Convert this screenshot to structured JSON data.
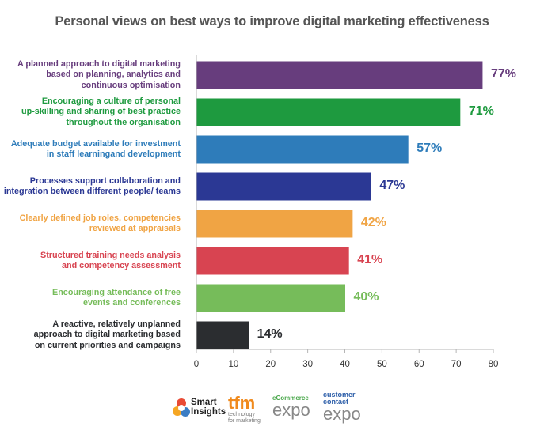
{
  "chart_data": {
    "type": "bar",
    "orientation": "horizontal",
    "title": "Personal views on best ways to improve digital marketing effectiveness",
    "categories": [
      [
        "A planned approach to digital marketing",
        "based on planning, analytics and",
        "continuous optimisation"
      ],
      [
        "Encouraging a culture of personal",
        "up-skilling and sharing of best practice",
        "throughout the organisation"
      ],
      [
        "Adequate budget available for investment",
        "in staff learningand development"
      ],
      [
        "Processes support collaboration and",
        "integration between different people/ teams"
      ],
      [
        "Clearly defined job roles, competencies",
        "reviewed at appraisals"
      ],
      [
        "Structured training needs analysis",
        "and competency assessment"
      ],
      [
        "Encouraging attendance of free",
        "events and conferences"
      ],
      [
        "A reactive, relatively unplanned",
        "approach to digital marketing based",
        "on current priorities and campaigns"
      ]
    ],
    "values": [
      77,
      71,
      57,
      47,
      42,
      41,
      40,
      14
    ],
    "value_labels": [
      "77%",
      "71%",
      "57%",
      "47%",
      "42%",
      "41%",
      "40%",
      "14%"
    ],
    "colors": [
      "#673d7d",
      "#1e9a3f",
      "#2e7cba",
      "#2b3894",
      "#f0a444",
      "#d84451",
      "#76bc5a",
      "#2b2d30"
    ],
    "xlim": [
      0,
      80
    ],
    "xticks": [
      "0",
      "10",
      "20",
      "30",
      "40",
      "50",
      "60",
      "70",
      "80"
    ],
    "xlabel": "",
    "ylabel": ""
  },
  "logos": {
    "smart_insights": [
      "Smart",
      "Insights"
    ],
    "tfm": {
      "main": "tfm",
      "sub": [
        "technology",
        "for marketing"
      ]
    },
    "ecommerce": {
      "top": "eCommerce",
      "main": "expo"
    },
    "customer_contact": {
      "top": [
        "customer",
        "contact"
      ],
      "main": "expo"
    }
  }
}
